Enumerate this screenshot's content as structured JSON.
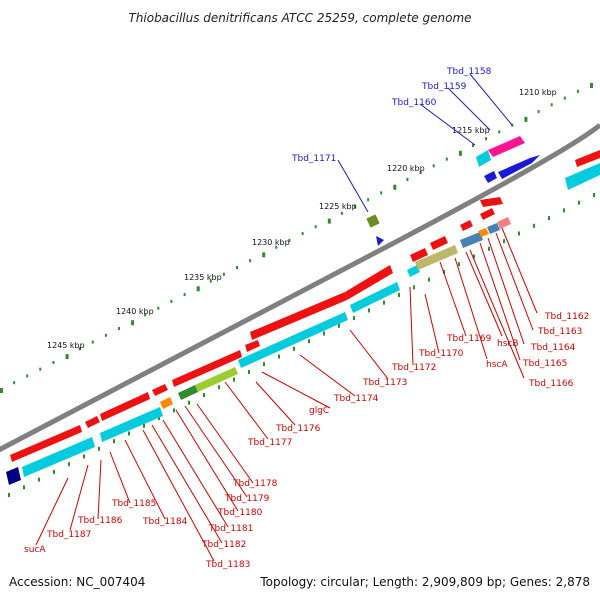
{
  "title": "Thiobacillus denitrificans ATCC 25259, complete genome",
  "footer": {
    "accession": "Accession: NC_007404",
    "stats": "Topology: circular; Length: 2,909,809 bp; Genes: 2,878"
  },
  "scale_labels": [
    "1210 kbp",
    "1215 kbp",
    "1220 kbp",
    "1225 kbp",
    "1230 kbp",
    "1235 kbp",
    "1240 kbp",
    "1245 kbp"
  ],
  "colors": {
    "forward_cds": "#ee1111",
    "reverse_cds": "#00ccdd",
    "backbone": "#808080",
    "label_forward": "#cc0000",
    "label_reverse": "#1a1acc",
    "tick": "#2e8b2e"
  },
  "labels": [
    {
      "name": "Tbd_1158",
      "color": "blue"
    },
    {
      "name": "Tbd_1159",
      "color": "blue"
    },
    {
      "name": "Tbd_1160",
      "color": "blue"
    },
    {
      "name": "Tbd_1171",
      "color": "blue"
    },
    {
      "name": "Tbd_1162",
      "color": "red"
    },
    {
      "name": "Tbd_1163",
      "color": "red"
    },
    {
      "name": "Tbd_1164",
      "color": "red"
    },
    {
      "name": "Tbd_1165",
      "color": "red"
    },
    {
      "name": "Tbd_1166",
      "color": "red"
    },
    {
      "name": "hscB",
      "color": "red"
    },
    {
      "name": "hscA",
      "color": "red"
    },
    {
      "name": "Tbd_1169",
      "color": "red"
    },
    {
      "name": "Tbd_1170",
      "color": "red"
    },
    {
      "name": "Tbd_1172",
      "color": "red"
    },
    {
      "name": "Tbd_1173",
      "color": "red"
    },
    {
      "name": "Tbd_1174",
      "color": "red"
    },
    {
      "name": "glgC",
      "color": "red"
    },
    {
      "name": "Tbd_1176",
      "color": "red"
    },
    {
      "name": "Tbd_1177",
      "color": "red"
    },
    {
      "name": "Tbd_1178",
      "color": "red"
    },
    {
      "name": "Tbd_1179",
      "color": "red"
    },
    {
      "name": "Tbd_1180",
      "color": "red"
    },
    {
      "name": "Tbd_1181",
      "color": "red"
    },
    {
      "name": "Tbd_1182",
      "color": "red"
    },
    {
      "name": "Tbd_1183",
      "color": "red"
    },
    {
      "name": "Tbd_1184",
      "color": "red"
    },
    {
      "name": "Tbd_1185",
      "color": "red"
    },
    {
      "name": "Tbd_1186",
      "color": "red"
    },
    {
      "name": "Tbd_1187",
      "color": "red"
    },
    {
      "name": "sucA",
      "color": "red"
    }
  ]
}
